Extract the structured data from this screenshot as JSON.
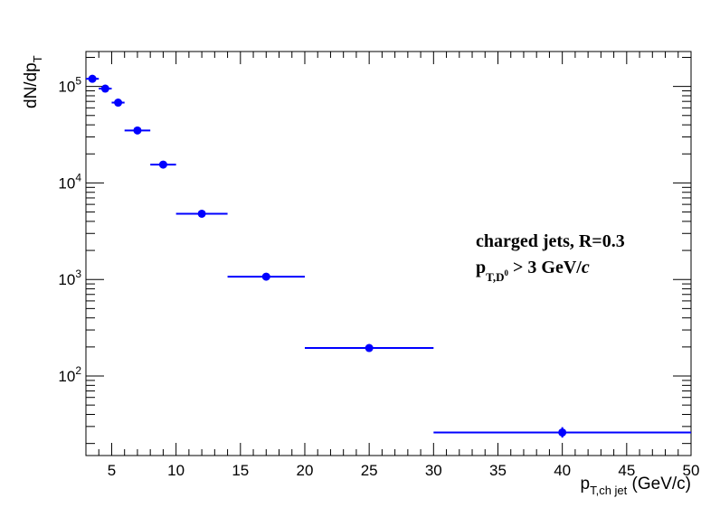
{
  "chart_data": {
    "type": "scatter",
    "x_scale": "linear",
    "y_scale": "log",
    "xlim": [
      3,
      50
    ],
    "ylim": [
      15,
      230000
    ],
    "xlabel": "p_{T,ch jet} (GeV/c)",
    "xlabel_main": "p",
    "xlabel_sub": "T,ch jet",
    "xlabel_unit": " (GeV/c)",
    "ylabel": "dN/dp_T",
    "ylabel_main": "dN/dp",
    "ylabel_sub": "T",
    "x_ticks": [
      5,
      10,
      15,
      20,
      25,
      30,
      35,
      40,
      45,
      50
    ],
    "y_ticks": [
      {
        "base": "10",
        "exp": "2",
        "value": 100
      },
      {
        "base": "10",
        "exp": "3",
        "value": 1000
      },
      {
        "base": "10",
        "exp": "4",
        "value": 10000
      },
      {
        "base": "10",
        "exp": "5",
        "value": 100000
      }
    ],
    "annotation_line1": "charged jets, R=0.3",
    "annotation_line2": "p_{T,D^0} > 3 GeV/c",
    "annotation_p": "p",
    "annotation_sub": "T,D",
    "annotation_sup": "0",
    "annotation_rest": " > 3 GeV/",
    "annotation_c": "c",
    "color": "#0000ff",
    "points": [
      {
        "x": 3.5,
        "xlow": 3,
        "xhigh": 4,
        "y": 120000
      },
      {
        "x": 4.5,
        "xlow": 4,
        "xhigh": 5,
        "y": 95000
      },
      {
        "x": 5.5,
        "xlow": 5,
        "xhigh": 6,
        "y": 68000
      },
      {
        "x": 7,
        "xlow": 6,
        "xhigh": 8,
        "y": 35000
      },
      {
        "x": 9,
        "xlow": 8,
        "xhigh": 10,
        "y": 15500
      },
      {
        "x": 12,
        "xlow": 10,
        "xhigh": 14,
        "y": 4800
      },
      {
        "x": 17,
        "xlow": 14,
        "xhigh": 20,
        "y": 1070
      },
      {
        "x": 25,
        "xlow": 20,
        "xhigh": 30,
        "y": 195,
        "ylow": 180,
        "yhigh": 210
      },
      {
        "x": 40,
        "xlow": 30,
        "xhigh": 50,
        "y": 26,
        "ylow": 23,
        "yhigh": 29.5
      }
    ]
  }
}
